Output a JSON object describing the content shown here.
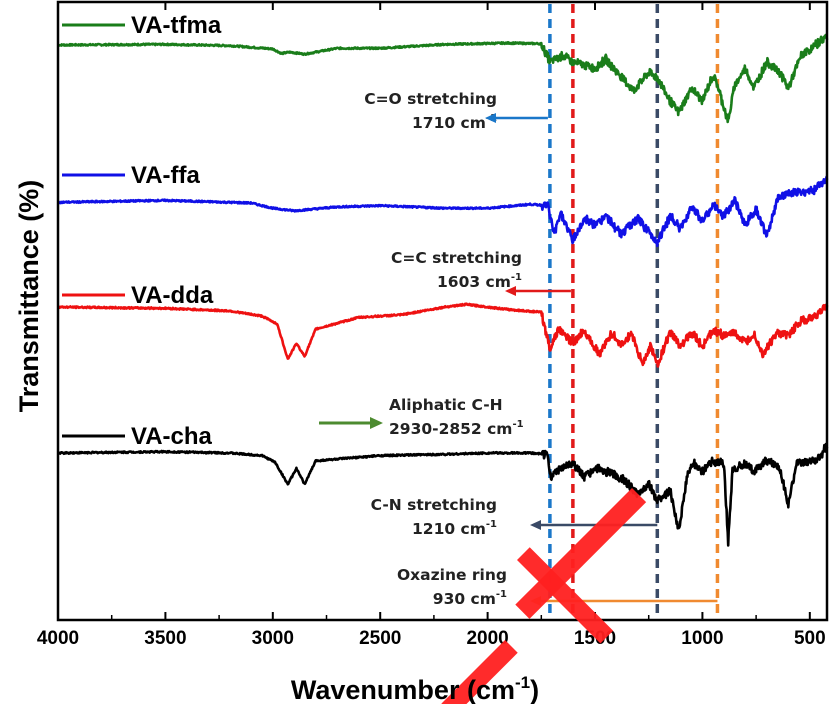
{
  "chart_data": {
    "type": "line",
    "xlabel": "Wavenumber (cm",
    "xlabel_sup": "-1",
    "xlabel_close": ")",
    "ylabel": "Transmittance (%)",
    "xlim": [
      4000,
      420
    ],
    "x_reversed": true,
    "x_ticks": [
      4000,
      3500,
      3000,
      2500,
      2000,
      1500,
      1000,
      500
    ],
    "y_ticks_shown": false,
    "grid": false,
    "legend": "inline-left",
    "series": [
      {
        "name": "VA-tfma",
        "color": "#1a7d1a",
        "baseline": 0.93,
        "points": [
          [
            4000,
            0.93
          ],
          [
            3500,
            0.935
          ],
          [
            3200,
            0.925
          ],
          [
            3000,
            0.9
          ],
          [
            2960,
            0.865
          ],
          [
            2920,
            0.875
          ],
          [
            2852,
            0.86
          ],
          [
            2700,
            0.905
          ],
          [
            2500,
            0.905
          ],
          [
            2200,
            0.935
          ],
          [
            1900,
            0.945
          ],
          [
            1750,
            0.94
          ],
          [
            1710,
            0.8
          ],
          [
            1650,
            0.85
          ],
          [
            1603,
            0.8
          ],
          [
            1500,
            0.75
          ],
          [
            1450,
            0.82
          ],
          [
            1320,
            0.58
          ],
          [
            1250,
            0.72
          ],
          [
            1210,
            0.68
          ],
          [
            1150,
            0.5
          ],
          [
            1110,
            0.41
          ],
          [
            1050,
            0.6
          ],
          [
            1000,
            0.5
          ],
          [
            950,
            0.7
          ],
          [
            930,
            0.62
          ],
          [
            880,
            0.34
          ],
          [
            850,
            0.62
          ],
          [
            800,
            0.75
          ],
          [
            760,
            0.6
          ],
          [
            700,
            0.8
          ],
          [
            640,
            0.72
          ],
          [
            600,
            0.6
          ],
          [
            540,
            0.85
          ],
          [
            480,
            0.92
          ],
          [
            430,
            0.99
          ]
        ]
      },
      {
        "name": "VA-ffa",
        "color": "#1010e6",
        "baseline": 0.72,
        "points": [
          [
            4000,
            0.725
          ],
          [
            3500,
            0.74
          ],
          [
            3100,
            0.72
          ],
          [
            3000,
            0.68
          ],
          [
            2900,
            0.66
          ],
          [
            2700,
            0.69
          ],
          [
            2500,
            0.7
          ],
          [
            2200,
            0.68
          ],
          [
            2000,
            0.68
          ],
          [
            1800,
            0.71
          ],
          [
            1720,
            0.7
          ],
          [
            1690,
            0.48
          ],
          [
            1660,
            0.65
          ],
          [
            1603,
            0.43
          ],
          [
            1550,
            0.6
          ],
          [
            1500,
            0.55
          ],
          [
            1450,
            0.62
          ],
          [
            1380,
            0.48
          ],
          [
            1300,
            0.6
          ],
          [
            1250,
            0.5
          ],
          [
            1210,
            0.42
          ],
          [
            1150,
            0.62
          ],
          [
            1100,
            0.52
          ],
          [
            1050,
            0.7
          ],
          [
            1000,
            0.58
          ],
          [
            950,
            0.7
          ],
          [
            900,
            0.62
          ],
          [
            850,
            0.74
          ],
          [
            800,
            0.55
          ],
          [
            750,
            0.68
          ],
          [
            700,
            0.46
          ],
          [
            650,
            0.75
          ],
          [
            600,
            0.8
          ],
          [
            540,
            0.8
          ],
          [
            480,
            0.82
          ],
          [
            430,
            0.9
          ]
        ]
      },
      {
        "name": "VA-dda",
        "color": "#ee1111",
        "baseline": 0.5,
        "points": [
          [
            4000,
            0.5
          ],
          [
            3500,
            0.49
          ],
          [
            3200,
            0.47
          ],
          [
            3050,
            0.43
          ],
          [
            2980,
            0.37
          ],
          [
            2930,
            0.1
          ],
          [
            2890,
            0.22
          ],
          [
            2852,
            0.12
          ],
          [
            2800,
            0.33
          ],
          [
            2600,
            0.42
          ],
          [
            2400,
            0.44
          ],
          [
            2200,
            0.5
          ],
          [
            2100,
            0.52
          ],
          [
            1900,
            0.48
          ],
          [
            1750,
            0.46
          ],
          [
            1710,
            0.18
          ],
          [
            1670,
            0.33
          ],
          [
            1603,
            0.22
          ],
          [
            1550,
            0.32
          ],
          [
            1480,
            0.14
          ],
          [
            1420,
            0.3
          ],
          [
            1380,
            0.2
          ],
          [
            1330,
            0.3
          ],
          [
            1280,
            0.06
          ],
          [
            1240,
            0.2
          ],
          [
            1210,
            0.06
          ],
          [
            1150,
            0.3
          ],
          [
            1100,
            0.2
          ],
          [
            1050,
            0.3
          ],
          [
            1000,
            0.2
          ],
          [
            950,
            0.32
          ],
          [
            900,
            0.28
          ],
          [
            850,
            0.3
          ],
          [
            800,
            0.22
          ],
          [
            760,
            0.3
          ],
          [
            720,
            0.14
          ],
          [
            650,
            0.3
          ],
          [
            600,
            0.28
          ],
          [
            540,
            0.4
          ],
          [
            480,
            0.42
          ],
          [
            430,
            0.5
          ]
        ]
      },
      {
        "name": "VA-cha",
        "color": "#000000",
        "baseline": 0.24,
        "points": [
          [
            4000,
            0.24
          ],
          [
            3500,
            0.25
          ],
          [
            3200,
            0.24
          ],
          [
            3050,
            0.22
          ],
          [
            2990,
            0.17
          ],
          [
            2930,
            0.0
          ],
          [
            2890,
            0.12
          ],
          [
            2852,
            0.0
          ],
          [
            2800,
            0.18
          ],
          [
            2500,
            0.22
          ],
          [
            2200,
            0.23
          ],
          [
            2000,
            0.24
          ],
          [
            1800,
            0.24
          ],
          [
            1720,
            0.23
          ],
          [
            1710,
            0.06
          ],
          [
            1660,
            0.12
          ],
          [
            1603,
            0.16
          ],
          [
            1550,
            0.06
          ],
          [
            1480,
            0.12
          ],
          [
            1420,
            0.08
          ],
          [
            1370,
            0.04
          ],
          [
            1300,
            -0.08
          ],
          [
            1250,
            0.0
          ],
          [
            1210,
            -0.12
          ],
          [
            1150,
            -0.05
          ],
          [
            1110,
            -0.36
          ],
          [
            1070,
            0.08
          ],
          [
            1040,
            0.16
          ],
          [
            1000,
            0.1
          ],
          [
            950,
            0.18
          ],
          [
            900,
            0.16
          ],
          [
            880,
            -0.45
          ],
          [
            860,
            0.1
          ],
          [
            800,
            0.16
          ],
          [
            760,
            0.1
          ],
          [
            700,
            0.18
          ],
          [
            640,
            0.12
          ],
          [
            600,
            -0.15
          ],
          [
            560,
            0.16
          ],
          [
            500,
            0.18
          ],
          [
            450,
            0.2
          ],
          [
            430,
            0.28
          ]
        ]
      }
    ],
    "markers": [
      {
        "x": 1710,
        "color": "#1a77c9",
        "label": "C=O stretching",
        "value": "1710 cm",
        "sup": "-1"
      },
      {
        "x": 1603,
        "color": "#e11a1a",
        "label": "C=C stretching",
        "value": "1603 cm",
        "sup": "-1"
      },
      {
        "x": 1210,
        "color": "#3a4a66",
        "label": "C-N stretching",
        "value": "1210 cm",
        "sup": "-1"
      },
      {
        "x": 930,
        "color": "#f08a30",
        "label": "Oxazine ring",
        "value": "930 cm",
        "sup": "-1"
      }
    ],
    "annotation_ch": {
      "label": "Aliphatic C-H",
      "value": "2930-2852 cm",
      "sup": "-1",
      "color": "#4d8b30"
    }
  },
  "watermark_color": "#ff2020"
}
